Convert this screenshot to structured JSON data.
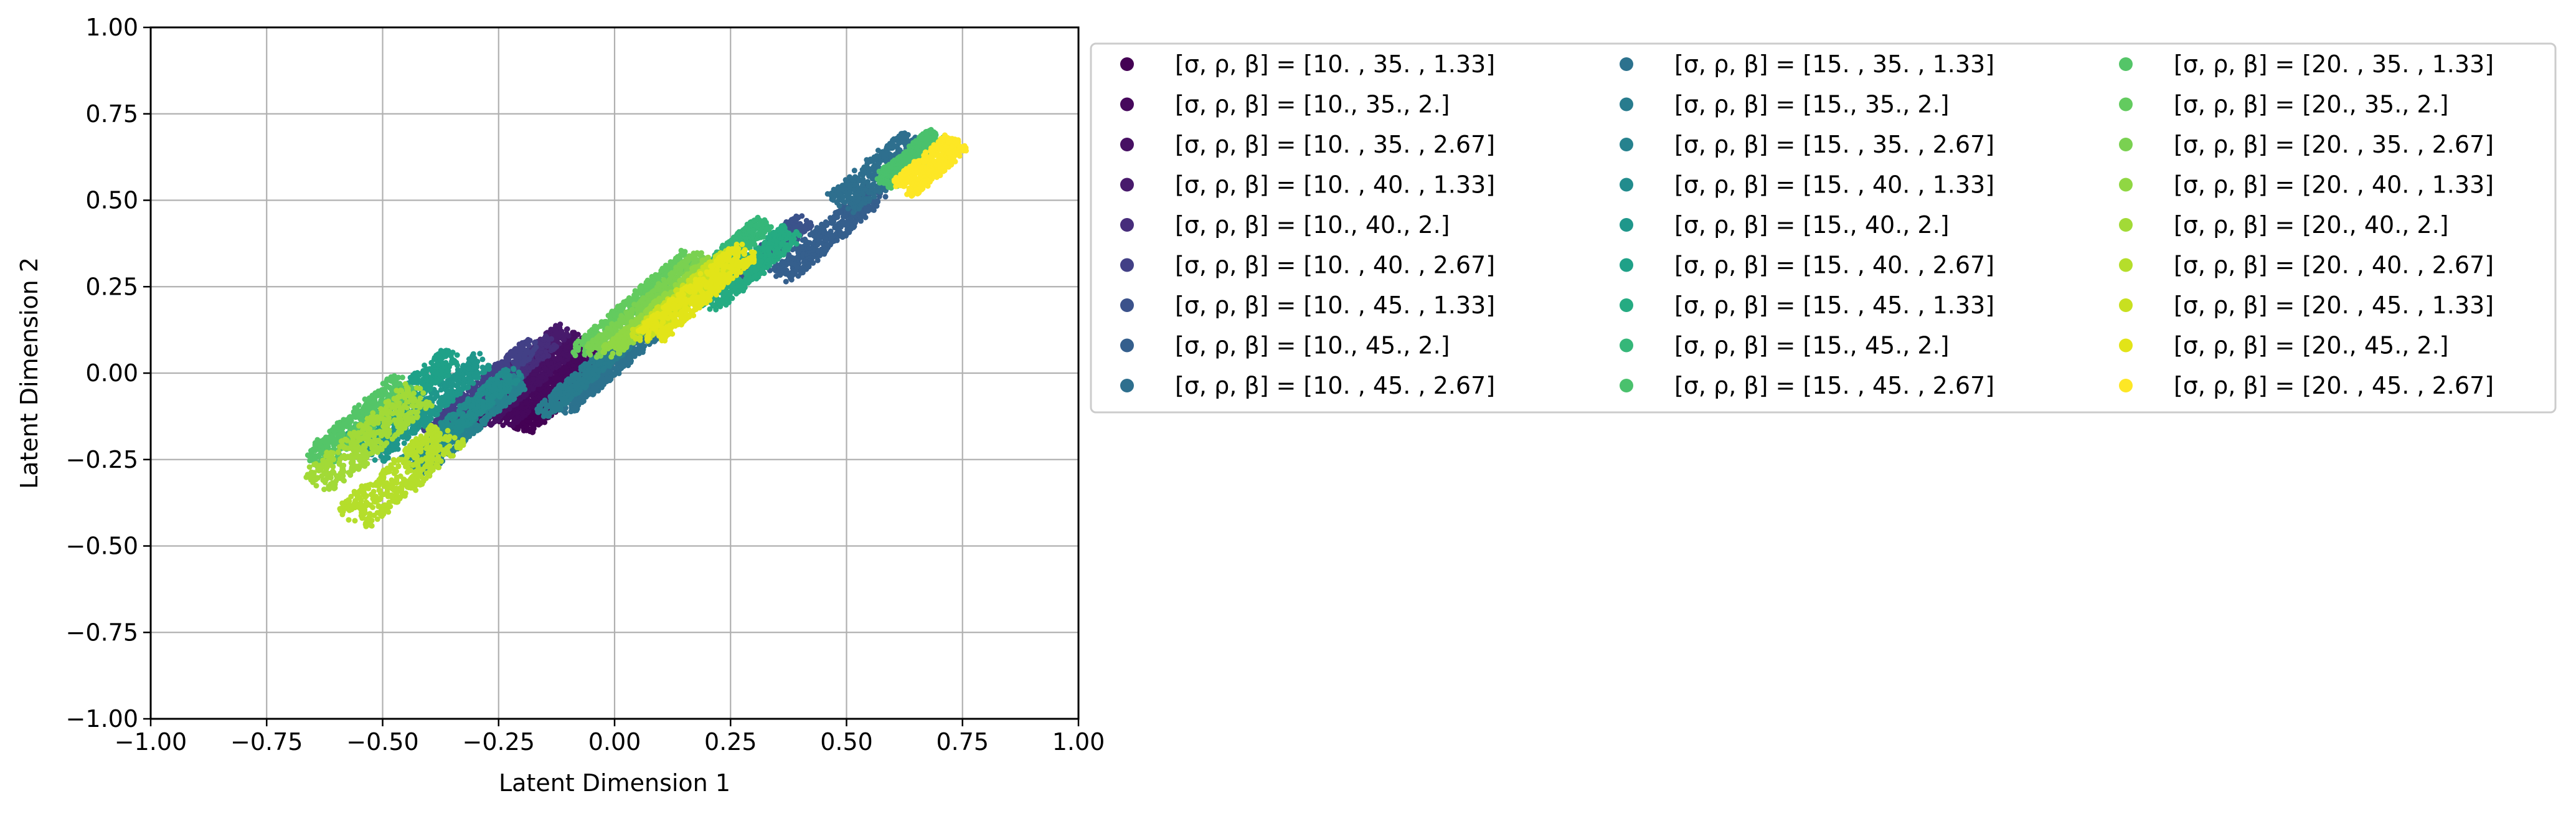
{
  "chart_data": {
    "type": "scatter",
    "title": "",
    "xlabel": "Latent Dimension 1",
    "ylabel": "Latent Dimension 2",
    "xlim": [
      -1.0,
      1.0
    ],
    "ylim": [
      -1.0,
      1.0
    ],
    "xticks": [
      "−1.00",
      "−0.75",
      "−0.50",
      "−0.25",
      "0.00",
      "0.25",
      "0.50",
      "0.75",
      "1.00"
    ],
    "yticks": [
      "1.00",
      "0.75",
      "0.50",
      "0.25",
      "0.00",
      "−0.25",
      "−0.50",
      "−0.75",
      "−1.00"
    ],
    "xtick_values": [
      -1.0,
      -0.75,
      -0.5,
      -0.25,
      0.0,
      0.25,
      0.5,
      0.75,
      1.0
    ],
    "ytick_values": [
      1.0,
      0.75,
      0.5,
      0.25,
      0.0,
      -0.25,
      -0.5,
      -0.75,
      -1.0
    ],
    "grid": true,
    "legend": {
      "placement": "outside right",
      "columns": 3
    },
    "series": [
      {
        "name": "[σ, ρ, β] = [10.  , 35.  ,  1.33]",
        "color": "#440154",
        "center": [
          -0.1,
          -0.05
        ],
        "half_length": 0.15,
        "half_width": 0.022
      },
      {
        "name": "[σ, ρ, β] = [10., 35.,  2.]",
        "color": "#46085c",
        "center": [
          -0.14,
          -0.03
        ],
        "half_length": 0.15,
        "half_width": 0.022
      },
      {
        "name": "[σ, ρ, β] = [10.  , 35.  ,  2.67]",
        "color": "#471063",
        "center": [
          -0.18,
          -0.02
        ],
        "half_length": 0.16,
        "half_width": 0.022
      },
      {
        "name": "[σ, ρ, β] = [10.  , 40.  ,  1.33]",
        "color": "#481a6c",
        "center": [
          -0.21,
          0.01
        ],
        "half_length": 0.15,
        "half_width": 0.022
      },
      {
        "name": "[σ, ρ, β] = [10., 40.,  2.]",
        "color": "#472d7b",
        "center": [
          -0.25,
          -0.04
        ],
        "half_length": 0.17,
        "half_width": 0.024
      },
      {
        "name": "[σ, ρ, β] = [10.  , 40.  ,  2.67]",
        "color": "#424086",
        "center": [
          -0.29,
          -0.05
        ],
        "half_length": 0.17,
        "half_width": 0.024
      },
      {
        "name": "[σ, ρ, β] = [10.  , 45.  ,  1.33]",
        "color": "#3b528b",
        "center": [
          0.33,
          0.35
        ],
        "half_length": 0.12,
        "half_width": 0.026
      },
      {
        "name": "[σ, ρ, β] = [10., 45.,  2.]",
        "color": "#355f8d",
        "center": [
          0.46,
          0.4
        ],
        "half_length": 0.16,
        "half_width": 0.032
      },
      {
        "name": "[σ, ρ, β] = [10.  , 45.  ,  2.67]",
        "color": "#2e6f8e",
        "center": [
          0.57,
          0.58
        ],
        "half_length": 0.12,
        "half_width": 0.045
      },
      {
        "name": "[σ, ρ, β] = [15.  , 35.  ,  1.33]",
        "color": "#2c728e",
        "center": [
          -0.01,
          0.01
        ],
        "half_length": 0.15,
        "half_width": 0.022
      },
      {
        "name": "[σ, ρ, β] = [15., 35.,  2.]",
        "color": "#287c8e",
        "center": [
          -0.05,
          0.01
        ],
        "half_length": 0.16,
        "half_width": 0.024
      },
      {
        "name": "[σ, ρ, β] = [15.  , 35.  ,  2.67]",
        "color": "#26828e",
        "center": [
          -0.31,
          -0.15
        ],
        "half_length": 0.17,
        "half_width": 0.024
      },
      {
        "name": "[σ, ρ, β] = [15.  , 40.  ,  1.33]",
        "color": "#228c8d",
        "center": [
          -0.33,
          -0.13
        ],
        "half_length": 0.17,
        "half_width": 0.026
      },
      {
        "name": "[σ, ρ, β] = [15., 40.,  2.]",
        "color": "#1f978b",
        "center": [
          -0.4,
          -0.1
        ],
        "half_length": 0.18,
        "half_width": 0.028
      },
      {
        "name": "[σ, ρ, β] = [15.  , 40.  ,  2.67]",
        "color": "#1fa188",
        "center": [
          -0.46,
          -0.08
        ],
        "half_length": 0.17,
        "half_width": 0.03
      },
      {
        "name": "[σ, ρ, β] = [15.  , 45.  ,  1.33]",
        "color": "#25ab82",
        "center": [
          0.29,
          0.3
        ],
        "half_length": 0.14,
        "half_width": 0.032
      },
      {
        "name": "[σ, ρ, β] = [15., 45.,  2.]",
        "color": "#35b779",
        "center": [
          0.25,
          0.35
        ],
        "half_length": 0.11,
        "half_width": 0.026
      },
      {
        "name": "[σ, ρ, β] = [15.  , 45.  ,  2.67]",
        "color": "#4ac16d",
        "center": [
          0.64,
          0.62
        ],
        "half_length": 0.09,
        "half_width": 0.03
      },
      {
        "name": "[σ, ρ, β] = [20.  , 35.  ,  1.33]",
        "color": "#54c568",
        "center": [
          -0.55,
          -0.14
        ],
        "half_length": 0.15,
        "half_width": 0.035
      },
      {
        "name": "[σ, ρ, β] = [20., 35.,  2.]",
        "color": "#63cb5f",
        "center": [
          0.04,
          0.2
        ],
        "half_length": 0.18,
        "half_width": 0.022
      },
      {
        "name": "[σ, ρ, β] = [20.  , 35.  ,  2.67]",
        "color": "#7ad151",
        "center": [
          0.07,
          0.2
        ],
        "half_length": 0.18,
        "half_width": 0.022
      },
      {
        "name": "[σ, ρ, β] = [20.  , 40.  ,  1.33]",
        "color": "#90d743",
        "center": [
          0.1,
          0.19
        ],
        "half_length": 0.17,
        "half_width": 0.022
      },
      {
        "name": "[σ, ρ, β] = [20., 40.,  2.]",
        "color": "#a2da37",
        "center": [
          -0.53,
          -0.19
        ],
        "half_length": 0.17,
        "half_width": 0.045
      },
      {
        "name": "[σ, ρ, β] = [20.  , 40.  ,  2.67]",
        "color": "#b5de2b",
        "center": [
          -0.46,
          -0.3
        ],
        "half_length": 0.16,
        "half_width": 0.05
      },
      {
        "name": "[σ, ρ, β] = [20.  , 45.  ,  1.33]",
        "color": "#c8e020",
        "center": [
          0.15,
          0.22
        ],
        "half_length": 0.15,
        "half_width": 0.026
      },
      {
        "name": "[σ, ρ, β] = [20., 45.,  2.]",
        "color": "#e2e418",
        "center": [
          0.18,
          0.23
        ],
        "half_length": 0.16,
        "half_width": 0.035
      },
      {
        "name": "[σ, ρ, β] = [20.  , 45.  ,  2.67]",
        "color": "#fde725",
        "center": [
          0.68,
          0.6
        ],
        "half_length": 0.09,
        "half_width": 0.035
      }
    ]
  }
}
